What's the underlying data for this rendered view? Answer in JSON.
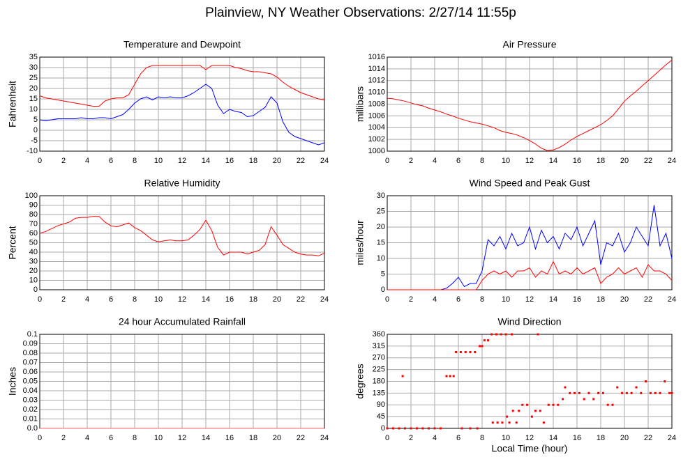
{
  "title": "Plainview, NY Weather Observations: 2/27/14 11:55p",
  "chart_data": [
    {
      "type": "line",
      "title": "Temperature and Dewpoint",
      "ylabel": "Fahrenheit",
      "x": [
        0,
        0.5,
        1,
        1.5,
        2,
        2.5,
        3,
        3.5,
        4,
        4.5,
        5,
        5.5,
        6,
        6.5,
        7,
        7.5,
        8,
        8.5,
        9,
        9.5,
        10,
        10.5,
        11,
        11.5,
        12,
        12.5,
        13,
        13.5,
        14,
        14.5,
        15,
        15.5,
        16,
        16.5,
        17,
        17.5,
        18,
        18.5,
        19,
        19.5,
        20,
        20.5,
        21,
        21.5,
        22,
        22.5,
        23,
        23.5,
        24
      ],
      "series": [
        {
          "color": "#ff0000",
          "values": [
            16.5,
            15.5,
            15,
            14.5,
            14,
            13.5,
            13,
            12.5,
            12,
            11.5,
            11.5,
            14,
            15,
            15.5,
            15.5,
            17,
            22,
            27,
            30,
            31,
            31,
            31,
            31,
            31,
            31,
            31,
            31,
            31,
            29,
            31,
            31,
            31,
            31,
            30,
            29.5,
            28.5,
            28,
            28,
            27.5,
            27,
            25.5,
            23,
            21,
            19.5,
            18,
            17,
            16,
            15,
            14.5
          ]
        },
        {
          "color": "#0000ff",
          "values": [
            5,
            4.5,
            5,
            5.5,
            5.5,
            5.5,
            5.5,
            6,
            5.5,
            5.5,
            6,
            6,
            5.5,
            6.5,
            7.5,
            10,
            13,
            15,
            16,
            14.5,
            16,
            15.5,
            16,
            15.5,
            15.5,
            16.5,
            18,
            20,
            22,
            20,
            12,
            8,
            10,
            9,
            8.5,
            6.5,
            7,
            9,
            11,
            16,
            13,
            4,
            -1,
            -3,
            -4,
            -5,
            -6,
            -7,
            -6
          ]
        }
      ],
      "xlim": [
        0,
        24
      ],
      "xticks": [
        0,
        2,
        4,
        6,
        8,
        10,
        12,
        14,
        16,
        18,
        20,
        22,
        24
      ],
      "ylim": [
        -10,
        35
      ],
      "yticks": [
        -10,
        -5,
        0,
        5,
        10,
        15,
        20,
        25,
        30,
        35
      ],
      "grid": true
    },
    {
      "type": "line",
      "title": "Air Pressure",
      "ylabel": "millibars",
      "x": [
        0,
        0.5,
        1,
        1.5,
        2,
        2.5,
        3,
        3.5,
        4,
        4.5,
        5,
        5.5,
        6,
        6.5,
        7,
        7.5,
        8,
        8.5,
        9,
        9.5,
        10,
        10.5,
        11,
        11.5,
        12,
        12.5,
        13,
        13.5,
        14,
        14.5,
        15,
        15.5,
        16,
        16.5,
        17,
        17.5,
        18,
        18.5,
        19,
        19.5,
        20,
        20.5,
        21,
        21.5,
        22,
        22.5,
        23,
        23.5,
        24
      ],
      "series": [
        {
          "color": "#ff0000",
          "values": [
            1009,
            1008.9,
            1008.7,
            1008.5,
            1008.2,
            1007.9,
            1007.7,
            1007.3,
            1007,
            1006.7,
            1006.3,
            1006,
            1005.6,
            1005.3,
            1005,
            1004.8,
            1004.6,
            1004.3,
            1004,
            1003.5,
            1003.2,
            1003,
            1002.7,
            1002.3,
            1001.8,
            1001.2,
            1000.5,
            1000.1,
            1000.2,
            1000.6,
            1001.2,
            1001.9,
            1002.5,
            1003,
            1003.5,
            1004,
            1004.5,
            1005.2,
            1006,
            1007.2,
            1008.5,
            1009.4,
            1010.2,
            1011.1,
            1012,
            1012.9,
            1013.8,
            1014.7,
            1015.5
          ]
        }
      ],
      "xlim": [
        0,
        24
      ],
      "xticks": [
        0,
        2,
        4,
        6,
        8,
        10,
        12,
        14,
        16,
        18,
        20,
        22,
        24
      ],
      "ylim": [
        1000,
        1016
      ],
      "yticks": [
        1000,
        1002,
        1004,
        1006,
        1008,
        1010,
        1012,
        1014,
        1016
      ],
      "grid": true
    },
    {
      "type": "line",
      "title": "Relative Humidity",
      "ylabel": "Percent",
      "x": [
        0,
        0.5,
        1,
        1.5,
        2,
        2.5,
        3,
        3.5,
        4,
        4.5,
        5,
        5.5,
        6,
        6.5,
        7,
        7.5,
        8,
        8.5,
        9,
        9.5,
        10,
        10.5,
        11,
        11.5,
        12,
        12.5,
        13,
        13.5,
        14,
        14.5,
        15,
        15.5,
        16,
        16.5,
        17,
        17.5,
        18,
        18.5,
        19,
        19.5,
        20,
        20.5,
        21,
        21.5,
        22,
        22.5,
        23,
        23.5,
        24
      ],
      "series": [
        {
          "color": "#ff0000",
          "values": [
            60,
            62,
            65,
            68,
            70,
            72,
            76,
            77,
            77,
            78,
            78,
            72,
            68,
            67,
            69,
            71,
            66,
            63,
            58,
            53,
            51,
            52,
            53,
            52,
            52,
            53,
            58,
            64,
            74,
            63,
            45,
            37,
            40,
            40,
            40,
            38,
            40,
            42,
            48,
            67,
            58,
            48,
            44,
            40,
            38,
            37,
            37,
            36,
            39
          ]
        }
      ],
      "xlim": [
        0,
        24
      ],
      "xticks": [
        0,
        2,
        4,
        6,
        8,
        10,
        12,
        14,
        16,
        18,
        20,
        22,
        24
      ],
      "ylim": [
        0,
        100
      ],
      "yticks": [
        0,
        10,
        20,
        30,
        40,
        50,
        60,
        70,
        80,
        90,
        100
      ],
      "grid": true
    },
    {
      "type": "line",
      "title": "Wind Speed and Peak Gust",
      "ylabel": "miles/hour",
      "x": [
        0,
        0.5,
        1,
        1.5,
        2,
        2.5,
        3,
        3.5,
        4,
        4.5,
        5,
        5.5,
        6,
        6.5,
        7,
        7.5,
        8,
        8.5,
        9,
        9.5,
        10,
        10.5,
        11,
        11.5,
        12,
        12.5,
        13,
        13.5,
        14,
        14.5,
        15,
        15.5,
        16,
        16.5,
        17,
        17.5,
        18,
        18.5,
        19,
        19.5,
        20,
        20.5,
        21,
        21.5,
        22,
        22.5,
        23,
        23.5,
        24
      ],
      "series": [
        {
          "color": "#0000ff",
          "values": [
            0,
            0,
            0,
            0,
            0,
            0,
            0,
            0,
            0,
            0,
            0.5,
            2,
            4,
            1,
            2,
            2,
            6,
            16,
            14,
            17,
            13,
            18,
            14,
            15,
            20,
            13,
            19,
            15,
            17,
            13,
            18,
            16,
            20,
            14,
            18,
            22,
            8,
            15,
            14,
            18,
            12,
            15,
            20,
            17,
            14,
            27,
            14,
            18,
            10
          ]
        },
        {
          "color": "#ff0000",
          "values": [
            0,
            0,
            0,
            0,
            0,
            0,
            0,
            0,
            0,
            0,
            0,
            0,
            0,
            0,
            0,
            0,
            3,
            5,
            6,
            5,
            6,
            4,
            6,
            6,
            7,
            4,
            6,
            5,
            9,
            5,
            6,
            5,
            7,
            5,
            6,
            7,
            2,
            4,
            5,
            7,
            5,
            6,
            7,
            4,
            8,
            6,
            6,
            5,
            3
          ]
        }
      ],
      "xlim": [
        0,
        24
      ],
      "xticks": [
        0,
        2,
        4,
        6,
        8,
        10,
        12,
        14,
        16,
        18,
        20,
        22,
        24
      ],
      "ylim": [
        0,
        30
      ],
      "yticks": [
        0,
        5,
        10,
        15,
        20,
        25,
        30
      ],
      "grid": true
    },
    {
      "type": "line",
      "title": "24 hour Accumulated Rainfall",
      "ylabel": "Inches",
      "x": [
        0,
        24
      ],
      "series": [
        {
          "color": "#ff6060",
          "values": [
            0,
            0
          ]
        }
      ],
      "xlim": [
        0,
        24
      ],
      "xticks": [
        0,
        2,
        4,
        6,
        8,
        10,
        12,
        14,
        16,
        18,
        20,
        22,
        24
      ],
      "ylim": [
        0,
        0.1
      ],
      "yticks": [
        {
          "value": 0,
          "label": "0.0"
        },
        0.01,
        0.02,
        0.03,
        0.04,
        0.05,
        0.06,
        0.07,
        0.08,
        0.09,
        0.1
      ],
      "grid": true
    },
    {
      "type": "scatter",
      "title": "Wind Direction",
      "ylabel": "degrees",
      "xlabel": "Local Time (hour)",
      "color": "#ff0000",
      "x": [
        0,
        0.5,
        1,
        1.5,
        2,
        2.5,
        3,
        3.5,
        4,
        4.5,
        1.3,
        5,
        5.3,
        5.6,
        5.8,
        6.2,
        6.6,
        7,
        7.4,
        7.8,
        8,
        8.2,
        8.5,
        8.8,
        9.2,
        9.6,
        10,
        10.5,
        12.7,
        6.3,
        7,
        7.6,
        8.9,
        9.3,
        9.7,
        10.1,
        10.3,
        10.6,
        10.9,
        11.1,
        11.4,
        11.8,
        12.2,
        12.5,
        12.9,
        13.2,
        13.6,
        14,
        14.4,
        14.8,
        15,
        15.4,
        15.8,
        16.2,
        16.6,
        17,
        17.4,
        17.8,
        18.2,
        18.6,
        19,
        19.4,
        19.8,
        20.2,
        20.6,
        21,
        21.4,
        21.8,
        22.2,
        22.6,
        23,
        23.4,
        23.8,
        24
      ],
      "values": [
        0,
        0,
        0,
        0,
        0,
        0,
        0,
        0,
        0,
        0,
        200,
        200,
        200,
        200,
        292,
        292,
        292,
        292,
        292,
        315,
        315,
        337,
        337,
        360,
        360,
        360,
        360,
        360,
        360,
        0,
        0,
        0,
        22,
        22,
        22,
        45,
        22,
        67,
        22,
        67,
        90,
        90,
        45,
        67,
        67,
        22,
        90,
        90,
        90,
        112,
        157,
        135,
        135,
        135,
        112,
        135,
        112,
        135,
        135,
        90,
        90,
        157,
        135,
        135,
        135,
        157,
        135,
        180,
        135,
        135,
        135,
        180,
        135,
        135
      ],
      "xlim": [
        0,
        24
      ],
      "xticks": [
        0,
        2,
        4,
        6,
        8,
        10,
        12,
        14,
        16,
        18,
        20,
        22,
        24
      ],
      "ylim": [
        0,
        360
      ],
      "yticks": [
        0,
        45,
        90,
        135,
        180,
        225,
        270,
        315,
        360
      ],
      "grid": true
    }
  ]
}
